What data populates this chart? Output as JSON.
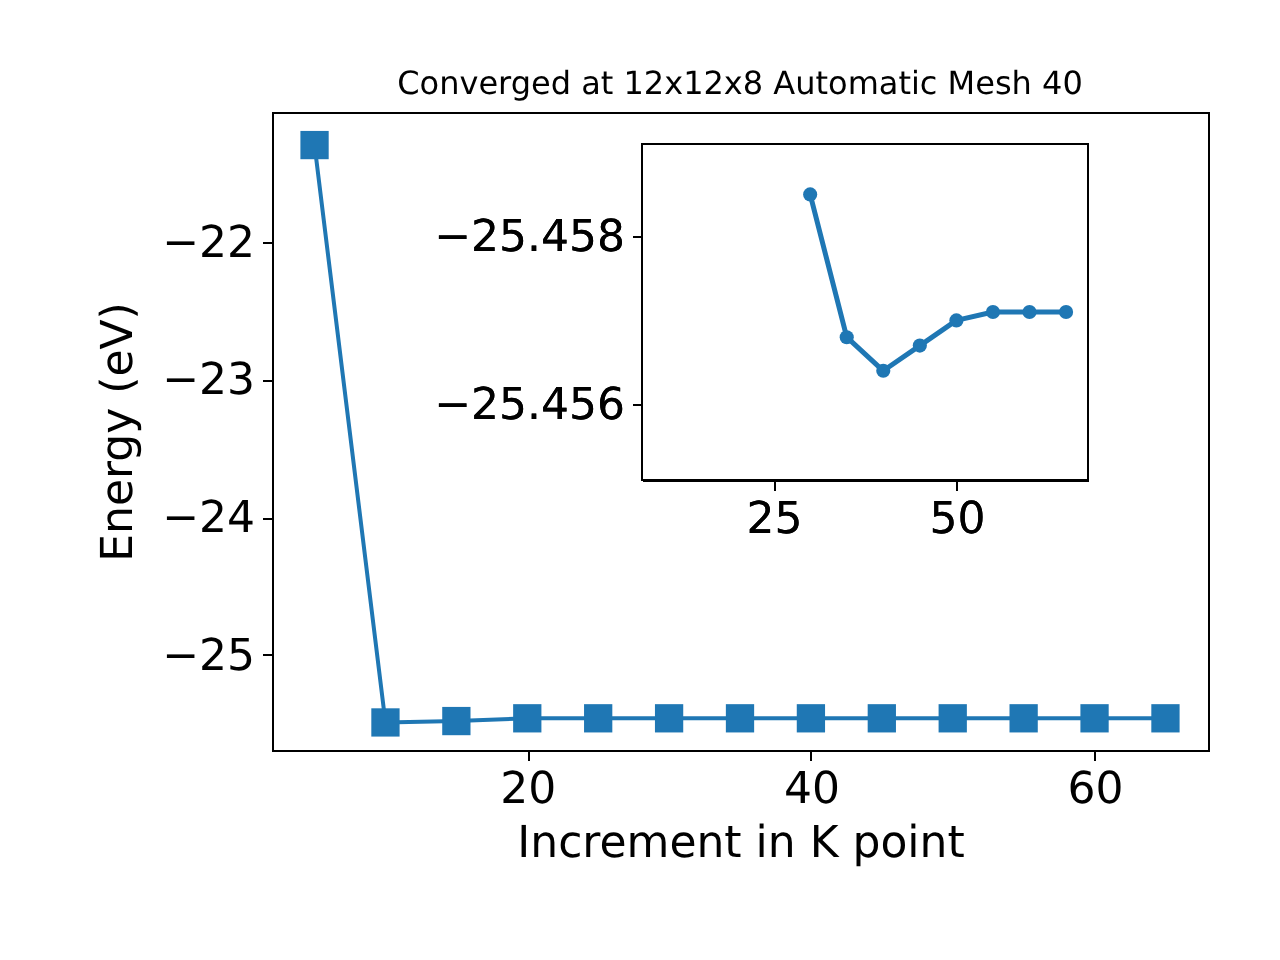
{
  "chart_data": [
    {
      "type": "line",
      "title": "Converged at 12x12x8 Automatic Mesh 40",
      "xlabel": "Increment in K point",
      "ylabel": "Energy (eV)",
      "x": [
        5,
        10,
        15,
        20,
        25,
        30,
        35,
        40,
        45,
        50,
        55,
        60,
        65
      ],
      "series": [
        {
          "color": "#1f77b4",
          "values": [
            -21.3,
            -25.49,
            -25.48,
            -25.46,
            -25.46,
            -25.46,
            -25.46,
            -25.46,
            -25.46,
            -25.46,
            -25.46,
            -25.46,
            -25.46
          ]
        }
      ],
      "xlim": [
        2,
        68
      ],
      "ylim": [
        -25.69,
        -21.06
      ],
      "xticks": [
        20,
        40,
        60
      ],
      "yticks": [
        -25,
        -24,
        -23,
        -22
      ],
      "marker": "square",
      "grid": false
    },
    {
      "type": "line",
      "x": [
        30,
        35,
        40,
        45,
        50,
        55,
        60,
        65
      ],
      "series": [
        {
          "color": "#1f77b4",
          "values": [
            -25.4585,
            -25.4568,
            -25.4564,
            -25.4567,
            -25.457,
            -25.4571,
            -25.4571,
            -25.4571
          ]
        }
      ],
      "xlim": [
        7,
        68
      ],
      "ylim": [
        -25.4551,
        -25.4591
      ],
      "xticks": [
        25,
        50
      ],
      "yticks": [
        -25.458,
        -25.456
      ],
      "marker": "circle",
      "grid": false
    }
  ]
}
